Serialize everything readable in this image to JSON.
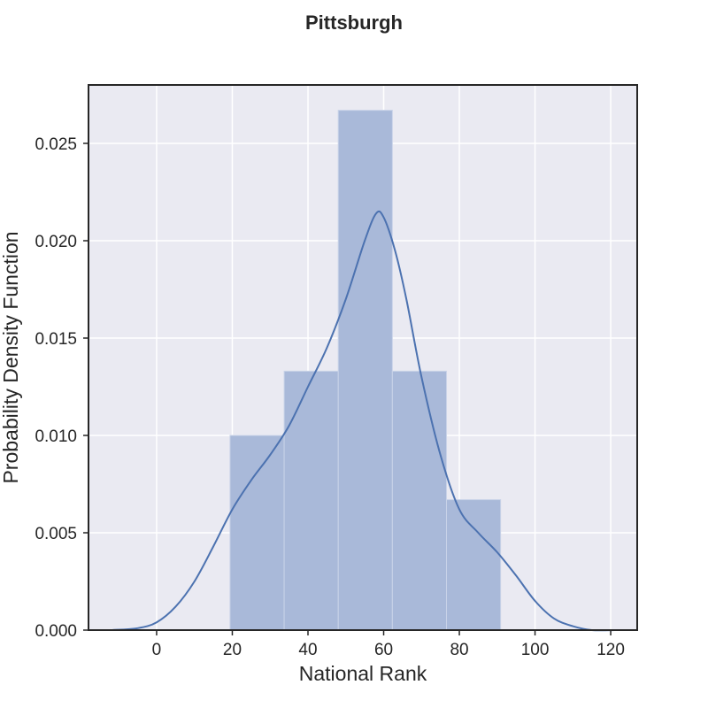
{
  "chart_data": {
    "type": "bar",
    "title": "Pittsburgh",
    "xlabel": "National Rank",
    "ylabel": "Probability Density Function",
    "xlim": [
      -18,
      127
    ],
    "ylim": [
      0,
      0.028
    ],
    "x_ticks": [
      0,
      20,
      40,
      60,
      80,
      100,
      120
    ],
    "y_ticks": [
      0.0,
      0.005,
      0.01,
      0.015,
      0.02,
      0.025
    ],
    "y_tick_labels": [
      "0.000",
      "0.005",
      "0.010",
      "0.015",
      "0.020",
      "0.025"
    ],
    "grid": true,
    "histogram": {
      "bins": [
        {
          "x0": 19.4,
          "x1": 33.7,
          "density": 0.01
        },
        {
          "x0": 33.7,
          "x1": 48.0,
          "density": 0.0133
        },
        {
          "x0": 48.0,
          "x1": 62.3,
          "density": 0.0267
        },
        {
          "x0": 62.3,
          "x1": 76.6,
          "density": 0.0133
        },
        {
          "x0": 76.6,
          "x1": 90.9,
          "density": 0.0067
        }
      ]
    },
    "kde": {
      "x": [
        -12,
        -5,
        0,
        5,
        10,
        15,
        20,
        25,
        30,
        35,
        40,
        45,
        50,
        55,
        58,
        60,
        63,
        66,
        70,
        75,
        80,
        85,
        90,
        95,
        100,
        105,
        110,
        115,
        121
      ],
      "y": [
        0.0,
        0.0001,
        0.0004,
        0.0012,
        0.0025,
        0.0043,
        0.0062,
        0.0077,
        0.009,
        0.0105,
        0.0125,
        0.0145,
        0.017,
        0.02,
        0.0214,
        0.0212,
        0.0195,
        0.017,
        0.013,
        0.009,
        0.0062,
        0.005,
        0.004,
        0.0028,
        0.0015,
        0.0006,
        0.0002,
        0.0,
        0.0
      ]
    },
    "colors": {
      "plot_background": "#eaeaf2",
      "grid": "#ffffff",
      "bar_fill": "#a9b9d9",
      "bar_edge": "#c9d3e8",
      "kde_line": "#4c72b0",
      "frame": "#262626"
    }
  }
}
